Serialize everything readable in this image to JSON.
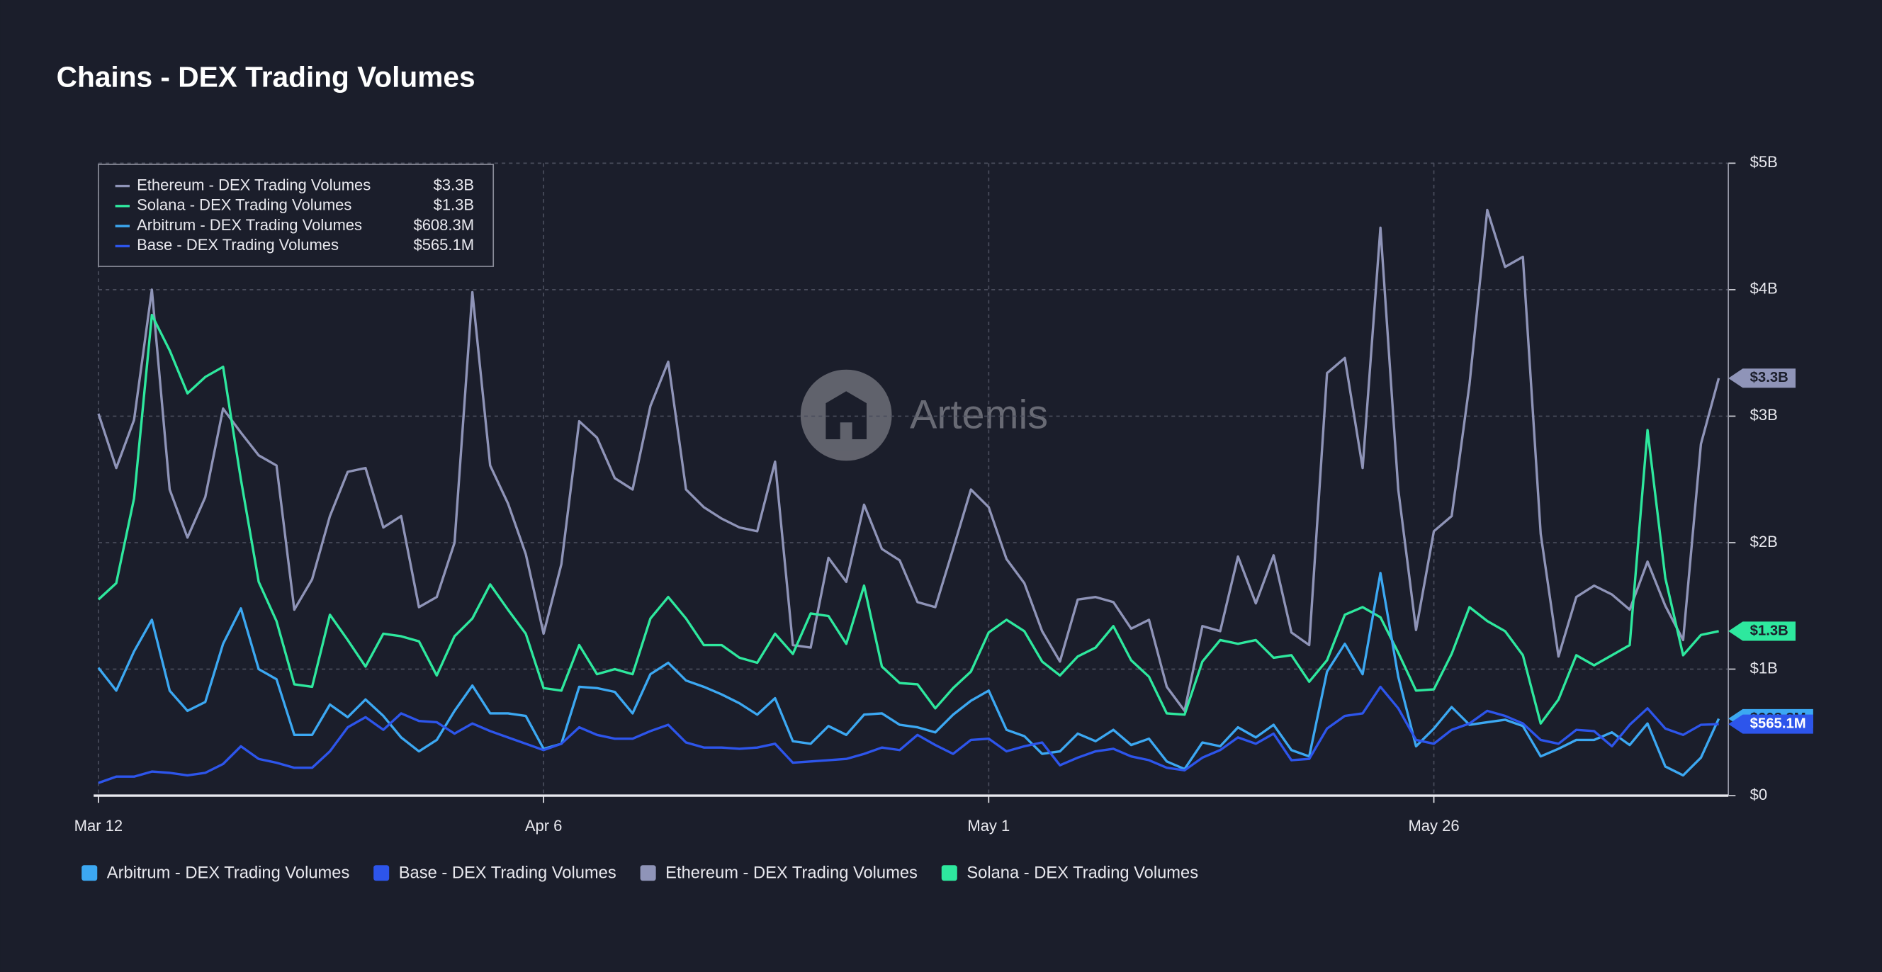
{
  "chart_data": {
    "type": "line",
    "title": "Chains - DEX Trading Volumes",
    "watermark": "Artemis",
    "categories": [
      "Mar 12",
      null,
      null,
      null,
      null,
      null,
      null,
      null,
      null,
      null,
      null,
      null,
      null,
      null,
      null,
      null,
      null,
      null,
      null,
      null,
      null,
      null,
      null,
      null,
      null,
      "Apr 6",
      null,
      null,
      null,
      null,
      null,
      null,
      null,
      null,
      null,
      null,
      null,
      null,
      null,
      null,
      null,
      null,
      null,
      null,
      null,
      null,
      null,
      null,
      null,
      null,
      "May 1",
      null,
      null,
      null,
      null,
      null,
      null,
      null,
      null,
      null,
      null,
      null,
      null,
      null,
      null,
      null,
      null,
      null,
      null,
      null,
      null,
      null,
      null,
      null,
      null,
      "May 26",
      null,
      null,
      null,
      null,
      null,
      null,
      null,
      null,
      null,
      null,
      null,
      null,
      null,
      null,
      null,
      null
    ],
    "series": [
      {
        "name": "Ethereum - DEX Trading Volumes",
        "color": "#8f94b8",
        "values": [
          3.02,
          2.59,
          2.97,
          4.0,
          2.42,
          2.04,
          2.36,
          3.06,
          2.87,
          2.69,
          2.61,
          1.47,
          1.71,
          2.21,
          2.56,
          2.59,
          2.12,
          2.21,
          1.49,
          1.57,
          2.0,
          3.98,
          2.61,
          2.31,
          1.91,
          1.28,
          1.83,
          2.96,
          2.83,
          2.51,
          2.42,
          3.08,
          3.43,
          2.42,
          2.28,
          2.19,
          2.12,
          2.09,
          2.64,
          1.19,
          1.17,
          1.88,
          1.69,
          2.3,
          1.95,
          1.86,
          1.53,
          1.49,
          1.95,
          2.42,
          2.28,
          1.87,
          1.68,
          1.3,
          1.06,
          1.55,
          1.57,
          1.53,
          1.32,
          1.39,
          0.86,
          0.67,
          1.34,
          1.3,
          1.89,
          1.52,
          1.9,
          1.29,
          1.19,
          3.34,
          3.46,
          2.59,
          4.49,
          2.42,
          1.31,
          2.09,
          2.21,
          3.25,
          4.63,
          4.18,
          4.26,
          2.07,
          1.1,
          1.57,
          1.66,
          1.59,
          1.47,
          1.85,
          1.5,
          1.23,
          2.78,
          3.3
        ],
        "value_labels": [
          null,
          null,
          null,
          null,
          null,
          null,
          null,
          null,
          null,
          null,
          null,
          null,
          null,
          null,
          null,
          null,
          null,
          null,
          null,
          null,
          null,
          null,
          null,
          null,
          null,
          null,
          null,
          null,
          null,
          null,
          null,
          null,
          null,
          null,
          null,
          null,
          null,
          null,
          null,
          null,
          null,
          null,
          null,
          null,
          null,
          null,
          null,
          null,
          null,
          null,
          null,
          null,
          null,
          null,
          null,
          null,
          null,
          null,
          null,
          null,
          null,
          null,
          null,
          null,
          null,
          null,
          null,
          null,
          null,
          null,
          null,
          null,
          null,
          null,
          null,
          null,
          null,
          null,
          null,
          null,
          null,
          null,
          null,
          null,
          null,
          null,
          null,
          null,
          null,
          null,
          null,
          "$3.3B"
        ]
      },
      {
        "name": "Solana - DEX Trading Volumes",
        "color": "#2ee89e",
        "values": [
          1.55,
          1.68,
          2.35,
          3.8,
          3.52,
          3.18,
          3.31,
          3.39,
          2.5,
          1.69,
          1.38,
          0.88,
          0.86,
          1.43,
          1.23,
          1.02,
          1.28,
          1.26,
          1.22,
          0.95,
          1.26,
          1.4,
          1.67,
          1.47,
          1.28,
          0.85,
          0.83,
          1.19,
          0.96,
          1.0,
          0.96,
          1.4,
          1.57,
          1.4,
          1.19,
          1.19,
          1.09,
          1.05,
          1.28,
          1.12,
          1.44,
          1.42,
          1.2,
          1.66,
          1.02,
          0.89,
          0.88,
          0.69,
          0.85,
          0.98,
          1.29,
          1.39,
          1.3,
          1.06,
          0.95,
          1.1,
          1.17,
          1.34,
          1.07,
          0.94,
          0.65,
          0.64,
          1.06,
          1.23,
          1.2,
          1.23,
          1.09,
          1.11,
          0.9,
          1.07,
          1.43,
          1.49,
          1.41,
          1.13,
          0.83,
          0.84,
          1.12,
          1.49,
          1.38,
          1.3,
          1.11,
          0.57,
          0.76,
          1.11,
          1.03,
          1.11,
          1.19,
          2.89,
          1.72,
          1.11,
          1.27,
          1.3
        ],
        "value_labels": [
          null,
          null,
          null,
          null,
          null,
          null,
          null,
          null,
          null,
          null,
          null,
          null,
          null,
          null,
          null,
          null,
          null,
          null,
          null,
          null,
          null,
          null,
          null,
          null,
          null,
          null,
          null,
          null,
          null,
          null,
          null,
          null,
          null,
          null,
          null,
          null,
          null,
          null,
          null,
          null,
          null,
          null,
          null,
          null,
          null,
          null,
          null,
          null,
          null,
          null,
          null,
          null,
          null,
          null,
          null,
          null,
          null,
          null,
          null,
          null,
          null,
          null,
          null,
          null,
          null,
          null,
          null,
          null,
          null,
          null,
          null,
          null,
          null,
          null,
          null,
          null,
          null,
          null,
          null,
          null,
          null,
          null,
          null,
          null,
          null,
          null,
          null,
          null,
          null,
          null,
          null,
          "$1.3B"
        ]
      },
      {
        "name": "Arbitrum - DEX Trading Volumes",
        "color": "#3ca8f2",
        "values": [
          1.01,
          0.83,
          1.14,
          1.39,
          0.83,
          0.67,
          0.74,
          1.2,
          1.48,
          1.0,
          0.92,
          0.48,
          0.48,
          0.72,
          0.62,
          0.76,
          0.63,
          0.46,
          0.35,
          0.44,
          0.67,
          0.87,
          0.65,
          0.65,
          0.63,
          0.37,
          0.41,
          0.86,
          0.85,
          0.82,
          0.65,
          0.96,
          1.05,
          0.91,
          0.86,
          0.8,
          0.73,
          0.64,
          0.77,
          0.43,
          0.41,
          0.55,
          0.48,
          0.64,
          0.65,
          0.56,
          0.54,
          0.5,
          0.64,
          0.75,
          0.83,
          0.52,
          0.47,
          0.33,
          0.35,
          0.49,
          0.43,
          0.52,
          0.4,
          0.45,
          0.27,
          0.21,
          0.42,
          0.39,
          0.54,
          0.46,
          0.56,
          0.36,
          0.31,
          0.98,
          1.2,
          0.96,
          1.76,
          0.94,
          0.39,
          0.53,
          0.7,
          0.56,
          0.58,
          0.6,
          0.55,
          0.31,
          0.37,
          0.44,
          0.44,
          0.5,
          0.4,
          0.57,
          0.23,
          0.16,
          0.3,
          0.6083
        ],
        "value_labels": [
          null,
          null,
          null,
          null,
          null,
          null,
          null,
          null,
          null,
          null,
          null,
          null,
          null,
          null,
          null,
          null,
          null,
          null,
          null,
          null,
          null,
          null,
          null,
          null,
          null,
          null,
          null,
          null,
          null,
          null,
          null,
          null,
          null,
          null,
          null,
          null,
          null,
          null,
          null,
          null,
          null,
          null,
          null,
          null,
          null,
          null,
          null,
          null,
          null,
          null,
          null,
          null,
          null,
          null,
          null,
          null,
          null,
          null,
          null,
          null,
          null,
          null,
          null,
          null,
          null,
          null,
          null,
          null,
          null,
          null,
          null,
          null,
          null,
          null,
          null,
          null,
          null,
          null,
          null,
          null,
          null,
          null,
          null,
          null,
          null,
          null,
          null,
          null,
          null,
          null,
          null,
          "$608.3M"
        ]
      },
      {
        "name": "Base - DEX Trading Volumes",
        "color": "#2d55eb",
        "values": [
          0.1,
          0.15,
          0.15,
          0.19,
          0.18,
          0.16,
          0.18,
          0.25,
          0.39,
          0.29,
          0.26,
          0.22,
          0.22,
          0.35,
          0.54,
          0.62,
          0.52,
          0.65,
          0.59,
          0.58,
          0.49,
          0.57,
          0.51,
          0.46,
          0.41,
          0.36,
          0.41,
          0.54,
          0.48,
          0.45,
          0.45,
          0.51,
          0.56,
          0.42,
          0.38,
          0.38,
          0.37,
          0.38,
          0.41,
          0.26,
          0.27,
          0.28,
          0.29,
          0.33,
          0.38,
          0.36,
          0.48,
          0.4,
          0.33,
          0.44,
          0.45,
          0.35,
          0.39,
          0.42,
          0.24,
          0.3,
          0.35,
          0.37,
          0.31,
          0.28,
          0.22,
          0.2,
          0.3,
          0.36,
          0.46,
          0.41,
          0.49,
          0.28,
          0.29,
          0.53,
          0.63,
          0.65,
          0.86,
          0.69,
          0.44,
          0.41,
          0.52,
          0.57,
          0.67,
          0.63,
          0.57,
          0.44,
          0.41,
          0.52,
          0.51,
          0.39,
          0.56,
          0.69,
          0.53,
          0.48,
          0.56,
          0.5651
        ],
        "value_labels": [
          null,
          null,
          null,
          null,
          null,
          null,
          null,
          null,
          null,
          null,
          null,
          null,
          null,
          null,
          null,
          null,
          null,
          null,
          null,
          null,
          null,
          null,
          null,
          null,
          null,
          null,
          null,
          null,
          null,
          null,
          null,
          null,
          null,
          null,
          null,
          null,
          null,
          null,
          null,
          null,
          null,
          null,
          null,
          null,
          null,
          null,
          null,
          null,
          null,
          null,
          null,
          null,
          null,
          null,
          null,
          null,
          null,
          null,
          null,
          null,
          null,
          null,
          null,
          null,
          null,
          null,
          null,
          null,
          null,
          null,
          null,
          null,
          null,
          null,
          null,
          null,
          null,
          null,
          null,
          null,
          null,
          null,
          null,
          null,
          null,
          null,
          null,
          null,
          null,
          null,
          null,
          "$565.1M"
        ]
      }
    ],
    "ylim": [
      0,
      5
    ],
    "yticks": [
      {
        "value": 0,
        "label": "$0"
      },
      {
        "value": 1,
        "label": "$1B"
      },
      {
        "value": 2,
        "label": "$2B"
      },
      {
        "value": 3,
        "label": "$3B"
      },
      {
        "value": 4,
        "label": "$4B"
      },
      {
        "value": 5,
        "label": "$5B"
      }
    ],
    "yaxis_position": "right",
    "grid": true,
    "legend": "top-left"
  }
}
